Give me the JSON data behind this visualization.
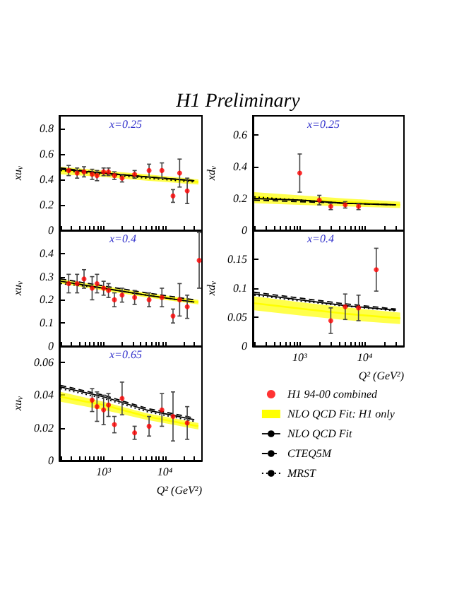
{
  "chart_data": [
    {
      "type": "scatter",
      "title": "H1 Preliminary",
      "ylabel": "xu$_{v}$",
      "annotations": [
        "x=0.25"
      ],
      "tick_labels": "y",
      "log": "x",
      "xlim": [
        190,
        40000
      ],
      "ylim": [
        0,
        0.9
      ],
      "xticks": [
        {
          "value": 200,
          "label": null
        },
        {
          "value": 300,
          "label": null
        },
        {
          "value": 400,
          "label": null
        },
        {
          "value": 500,
          "label": null
        },
        {
          "value": 600,
          "label": null
        },
        {
          "value": 700,
          "label": null
        },
        {
          "value": 800,
          "label": null
        },
        {
          "value": 900,
          "label": null
        },
        {
          "value": 1000,
          "label": null
        },
        {
          "value": 2000,
          "label": null
        },
        {
          "value": 3000,
          "label": null
        },
        {
          "value": 4000,
          "label": null
        },
        {
          "value": 5000,
          "label": null
        },
        {
          "value": 6000,
          "label": null
        },
        {
          "value": 7000,
          "label": null
        },
        {
          "value": 8000,
          "label": null
        },
        {
          "value": 9000,
          "label": null
        },
        {
          "value": 10000,
          "label": null
        },
        {
          "value": 20000,
          "label": null
        },
        {
          "value": 30000,
          "label": null
        }
      ],
      "yticks": [
        0,
        0.2,
        0.4,
        0.6,
        0.8
      ],
      "series": [
        {
          "type": "scatter",
          "marker": "circle",
          "color": "#ff0000",
          "x": [
            270,
            370,
            480,
            650,
            780,
            1000,
            1200,
            1500,
            2000,
            3200,
            5500,
            8900,
            13500,
            17300,
            23000
          ],
          "values": [
            0.47,
            0.45,
            0.46,
            0.44,
            0.43,
            0.46,
            0.46,
            0.43,
            0.41,
            0.44,
            0.47,
            0.47,
            0.27,
            0.45,
            0.31
          ],
          "errors": [
            0.04,
            0.04,
            0.04,
            0.04,
            0.04,
            0.03,
            0.03,
            0.03,
            0.03,
            0.03,
            0.05,
            0.06,
            0.05,
            0.11,
            0.1
          ]
        },
        {
          "type": "line",
          "color": "#ffff00",
          "x": [
            200,
            1000,
            5000,
            35000
          ],
          "values": [
            0.47,
            0.45,
            0.42,
            0.38
          ],
          "lower": [
            0.44,
            0.42,
            0.39,
            0.36
          ],
          "upper": [
            0.5,
            0.47,
            0.44,
            0.4
          ]
        },
        {
          "type": "line",
          "line_style": "solid",
          "color": "#000000",
          "x": [
            200,
            1000,
            5000,
            30000
          ],
          "values": [
            0.48,
            0.45,
            0.42,
            0.39
          ]
        },
        {
          "type": "line",
          "line_style": "dashed",
          "color": "#000000",
          "x": [
            200,
            1000,
            5000,
            30000
          ],
          "values": [
            0.49,
            0.45,
            0.42,
            0.39
          ]
        },
        {
          "type": "line",
          "line_style": "dotted",
          "color": "#000000",
          "x": [
            200,
            1000,
            5000,
            30000
          ],
          "values": [
            0.47,
            0.44,
            0.41,
            0.38
          ]
        }
      ]
    },
    {
      "type": "scatter",
      "ylabel": "xd$_{v}$",
      "annotations": [
        "x=0.25"
      ],
      "tick_labels": "y",
      "log": "x",
      "xlim": [
        190,
        40000
      ],
      "ylim": [
        0,
        0.72
      ],
      "xticks": [
        {
          "value": 200,
          "label": null
        },
        {
          "value": 300,
          "label": null
        },
        {
          "value": 400,
          "label": null
        },
        {
          "value": 500,
          "label": null
        },
        {
          "value": 600,
          "label": null
        },
        {
          "value": 700,
          "label": null
        },
        {
          "value": 800,
          "label": null
        },
        {
          "value": 900,
          "label": null
        },
        {
          "value": 1000,
          "label": null
        },
        {
          "value": 2000,
          "label": null
        },
        {
          "value": 3000,
          "label": null
        },
        {
          "value": 4000,
          "label": null
        },
        {
          "value": 5000,
          "label": null
        },
        {
          "value": 6000,
          "label": null
        },
        {
          "value": 7000,
          "label": null
        },
        {
          "value": 8000,
          "label": null
        },
        {
          "value": 9000,
          "label": null
        },
        {
          "value": 10000,
          "label": null
        },
        {
          "value": 20000,
          "label": null
        },
        {
          "value": 30000,
          "label": null
        }
      ],
      "yticks": [
        0,
        0.2,
        0.4,
        0.6
      ],
      "series": [
        {
          "type": "scatter",
          "marker": "circle",
          "color": "#ff0000",
          "x": [
            1000,
            2000,
            3000,
            5000,
            8000
          ],
          "values": [
            0.36,
            0.19,
            0.15,
            0.16,
            0.15
          ],
          "errors": [
            0.12,
            0.03,
            0.02,
            0.02,
            0.02
          ]
        },
        {
          "type": "line",
          "color": "#ffff00",
          "x": [
            200,
            1000,
            5000,
            35000
          ],
          "values": [
            0.21,
            0.19,
            0.18,
            0.16
          ],
          "lower": [
            0.17,
            0.16,
            0.15,
            0.14
          ],
          "upper": [
            0.24,
            0.22,
            0.2,
            0.18
          ]
        },
        {
          "type": "line",
          "line_style": "solid",
          "color": "#000000",
          "x": [
            200,
            1000,
            5000,
            30000
          ],
          "values": [
            0.2,
            0.19,
            0.17,
            0.16
          ]
        },
        {
          "type": "line",
          "line_style": "dashed",
          "color": "#000000",
          "x": [
            200,
            1000,
            5000,
            30000
          ],
          "values": [
            0.19,
            0.18,
            0.17,
            0.16
          ]
        },
        {
          "type": "line",
          "line_style": "dotted",
          "color": "#000000",
          "x": [
            200,
            1000,
            5000,
            30000
          ],
          "values": [
            0.21,
            0.19,
            0.17,
            0.16
          ]
        }
      ]
    },
    {
      "type": "scatter",
      "ylabel": "xu$_{v}$",
      "annotations": [
        "x=0.4"
      ],
      "tick_labels": "y",
      "log": "x",
      "xlim": [
        190,
        40000
      ],
      "ylim": [
        0,
        0.5
      ],
      "xticks": [
        {
          "value": 200,
          "label": null
        },
        {
          "value": 300,
          "label": null
        },
        {
          "value": 400,
          "label": null
        },
        {
          "value": 500,
          "label": null
        },
        {
          "value": 600,
          "label": null
        },
        {
          "value": 700,
          "label": null
        },
        {
          "value": 800,
          "label": null
        },
        {
          "value": 900,
          "label": null
        },
        {
          "value": 1000,
          "label": null
        },
        {
          "value": 2000,
          "label": null
        },
        {
          "value": 3000,
          "label": null
        },
        {
          "value": 4000,
          "label": null
        },
        {
          "value": 5000,
          "label": null
        },
        {
          "value": 6000,
          "label": null
        },
        {
          "value": 7000,
          "label": null
        },
        {
          "value": 8000,
          "label": null
        },
        {
          "value": 9000,
          "label": null
        },
        {
          "value": 10000,
          "label": null
        },
        {
          "value": 20000,
          "label": null
        },
        {
          "value": 30000,
          "label": null
        }
      ],
      "yticks": [
        0,
        0.1,
        0.2,
        0.3,
        0.4
      ],
      "series": [
        {
          "type": "scatter",
          "marker": "circle",
          "color": "#ff0000",
          "x": [
            270,
            370,
            480,
            650,
            780,
            1000,
            1200,
            1500,
            2000,
            3200,
            5500,
            8900,
            13500,
            17300,
            23000,
            36000
          ],
          "values": [
            0.27,
            0.27,
            0.29,
            0.25,
            0.27,
            0.25,
            0.24,
            0.2,
            0.22,
            0.21,
            0.2,
            0.21,
            0.13,
            0.2,
            0.17,
            0.37
          ],
          "errors": [
            0.04,
            0.04,
            0.04,
            0.05,
            0.04,
            0.03,
            0.03,
            0.03,
            0.03,
            0.03,
            0.03,
            0.04,
            0.03,
            0.07,
            0.05,
            0.12
          ]
        },
        {
          "type": "line",
          "color": "#ffff00",
          "x": [
            200,
            1000,
            5000,
            35000
          ],
          "values": [
            0.28,
            0.25,
            0.22,
            0.19
          ],
          "lower": [
            0.27,
            0.24,
            0.21,
            0.18
          ],
          "upper": [
            0.29,
            0.26,
            0.23,
            0.2
          ]
        },
        {
          "type": "line",
          "line_style": "solid",
          "color": "#000000",
          "x": [
            200,
            1000,
            5000,
            30000
          ],
          "values": [
            0.28,
            0.25,
            0.22,
            0.19
          ]
        },
        {
          "type": "line",
          "line_style": "dashed",
          "color": "#000000",
          "x": [
            200,
            1000,
            5000,
            30000
          ],
          "values": [
            0.29,
            0.26,
            0.23,
            0.2
          ]
        },
        {
          "type": "line",
          "line_style": "dotted",
          "color": "#000000",
          "x": [
            200,
            1000,
            5000,
            30000
          ],
          "values": [
            0.27,
            0.25,
            0.22,
            0.19
          ]
        }
      ]
    },
    {
      "type": "scatter",
      "ylabel": "xd$_{v}$",
      "xlabel": "Q² (GeV²)",
      "annotations": [
        "x=0.4"
      ],
      "log": "x",
      "xlim": [
        190,
        40000
      ],
      "ylim": [
        0,
        0.2
      ],
      "xticks": [
        {
          "value": 200,
          "label": null
        },
        {
          "value": 300,
          "label": null
        },
        {
          "value": 400,
          "label": null
        },
        {
          "value": 500,
          "label": null
        },
        {
          "value": 600,
          "label": null
        },
        {
          "value": 700,
          "label": null
        },
        {
          "value": 800,
          "label": null
        },
        {
          "value": 900,
          "label": null
        },
        {
          "value": 1000,
          "label": "10³"
        },
        {
          "value": 2000,
          "label": null
        },
        {
          "value": 3000,
          "label": null
        },
        {
          "value": 4000,
          "label": null
        },
        {
          "value": 5000,
          "label": null
        },
        {
          "value": 6000,
          "label": null
        },
        {
          "value": 7000,
          "label": null
        },
        {
          "value": 8000,
          "label": null
        },
        {
          "value": 9000,
          "label": null
        },
        {
          "value": 10000,
          "label": "10⁴"
        },
        {
          "value": 20000,
          "label": null
        },
        {
          "value": 30000,
          "label": null
        }
      ],
      "yticks": [
        0,
        0.05,
        0.1,
        0.15
      ],
      "series": [
        {
          "type": "scatter",
          "marker": "circle",
          "color": "#ff0000",
          "x": [
            3000,
            5000,
            8000,
            15000
          ],
          "values": [
            0.044,
            0.068,
            0.066,
            0.132
          ],
          "errors": [
            0.022,
            0.022,
            0.022,
            0.037
          ]
        },
        {
          "type": "line",
          "color": "#ffff00",
          "x": [
            200,
            1000,
            5000,
            35000
          ],
          "values": [
            0.074,
            0.065,
            0.056,
            0.048
          ],
          "lower": [
            0.062,
            0.053,
            0.045,
            0.038
          ],
          "upper": [
            0.086,
            0.076,
            0.067,
            0.058
          ]
        },
        {
          "type": "line",
          "line_style": "solid",
          "color": "#000000",
          "x": [
            200,
            1000,
            5000,
            30000
          ],
          "values": [
            0.09,
            0.08,
            0.07,
            0.062
          ]
        },
        {
          "type": "line",
          "line_style": "dashed",
          "color": "#000000",
          "x": [
            200,
            1000,
            5000,
            30000
          ],
          "values": [
            0.093,
            0.083,
            0.073,
            0.064
          ]
        },
        {
          "type": "line",
          "line_style": "dotted",
          "color": "#000000",
          "x": [
            200,
            1000,
            5000,
            30000
          ],
          "values": [
            0.088,
            0.078,
            0.069,
            0.061
          ]
        }
      ]
    },
    {
      "type": "scatter",
      "ylabel": "xu$_{v}$",
      "xlabel": "Q² (GeV²)",
      "annotations": [
        "x=0.65"
      ],
      "legend": "right",
      "log": "x",
      "xlim": [
        190,
        40000
      ],
      "ylim": [
        0,
        0.07
      ],
      "xticks": [
        {
          "value": 200,
          "label": null
        },
        {
          "value": 300,
          "label": null
        },
        {
          "value": 400,
          "label": null
        },
        {
          "value": 500,
          "label": null
        },
        {
          "value": 600,
          "label": null
        },
        {
          "value": 700,
          "label": null
        },
        {
          "value": 800,
          "label": null
        },
        {
          "value": 900,
          "label": null
        },
        {
          "value": 1000,
          "label": "10³"
        },
        {
          "value": 2000,
          "label": null
        },
        {
          "value": 3000,
          "label": null
        },
        {
          "value": 4000,
          "label": null
        },
        {
          "value": 5000,
          "label": null
        },
        {
          "value": 6000,
          "label": null
        },
        {
          "value": 7000,
          "label": null
        },
        {
          "value": 8000,
          "label": null
        },
        {
          "value": 9000,
          "label": null
        },
        {
          "value": 10000,
          "label": "10⁴"
        },
        {
          "value": 20000,
          "label": null
        },
        {
          "value": 30000,
          "label": null
        }
      ],
      "yticks": [
        0,
        0.02,
        0.04,
        0.06
      ],
      "series": [
        {
          "name": "H1 94-00 combined",
          "type": "scatter",
          "marker": "circle",
          "color": "#ff0000",
          "x": [
            650,
            780,
            1000,
            1200,
            1500,
            2000,
            3200,
            5500,
            8900,
            13500,
            23000
          ],
          "values": [
            0.037,
            0.033,
            0.031,
            0.034,
            0.022,
            0.038,
            0.017,
            0.021,
            0.031,
            0.027,
            0.023
          ],
          "errors": [
            0.007,
            0.009,
            0.009,
            0.007,
            0.005,
            0.01,
            0.004,
            0.006,
            0.01,
            0.015,
            0.01
          ]
        },
        {
          "name": "NLO QCD Fit: H1 only",
          "type": "line",
          "color": "#ffff00",
          "x": [
            200,
            1000,
            5000,
            35000
          ],
          "values": [
            0.039,
            0.034,
            0.027,
            0.021
          ],
          "lower": [
            0.036,
            0.031,
            0.025,
            0.019
          ],
          "upper": [
            0.042,
            0.036,
            0.029,
            0.023
          ]
        },
        {
          "name": "NLO QCD Fit",
          "type": "line",
          "line_style": "solid",
          "color": "#000000",
          "x": [
            200,
            1000,
            5000,
            30000
          ],
          "values": [
            0.045,
            0.039,
            0.031,
            0.025
          ]
        },
        {
          "name": "CTEQ5M",
          "type": "line",
          "line_style": "dashed",
          "color": "#000000",
          "x": [
            200,
            1000,
            5000,
            30000
          ],
          "values": [
            0.046,
            0.04,
            0.032,
            0.026
          ]
        },
        {
          "name": "MRST",
          "type": "line",
          "line_style": "dotted",
          "color": "#000000",
          "x": [
            200,
            1000,
            5000,
            30000
          ],
          "values": [
            0.044,
            0.038,
            0.03,
            0.024
          ]
        }
      ]
    }
  ]
}
